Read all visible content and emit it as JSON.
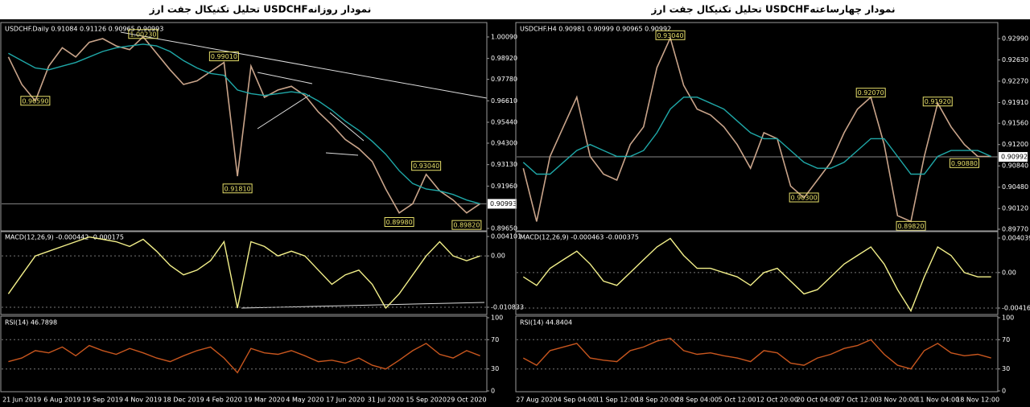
{
  "chart_data": [
    {
      "type": "line",
      "title": "تحلیل تکنیکال جفت ارز  USDCHFنمودار روزانه",
      "subtitle": "USDCHF.Daily  0.91084 0.91126 0.90965 0.90993",
      "series": [
        {
          "color": "#c9a48a",
          "values": [
            0.99,
            0.975,
            0.966,
            0.985,
            0.995,
            0.99,
            0.998,
            1.0,
            0.996,
            0.994,
            1.001,
            0.992,
            0.983,
            0.975,
            0.977,
            0.982,
            0.987,
            0.925,
            0.985,
            0.968,
            0.972,
            0.974,
            0.969,
            0.96,
            0.953,
            0.945,
            0.94,
            0.933,
            0.918,
            0.905,
            0.91,
            0.926,
            0.917,
            0.912,
            0.905,
            0.91
          ]
        },
        {
          "color": "#1fa8a8",
          "values": [
            0.992,
            0.988,
            0.984,
            0.983,
            0.985,
            0.987,
            0.99,
            0.993,
            0.995,
            0.996,
            0.997,
            0.996,
            0.993,
            0.988,
            0.984,
            0.981,
            0.98,
            0.972,
            0.97,
            0.969,
            0.97,
            0.971,
            0.97,
            0.966,
            0.961,
            0.955,
            0.95,
            0.944,
            0.937,
            0.928,
            0.921,
            0.918,
            0.917,
            0.915,
            0.912,
            0.91
          ]
        }
      ],
      "ylim": [
        0.8952,
        1.0079
      ],
      "yticks": [
        {
          "value": 1.0009,
          "label": "1.00090"
        },
        {
          "value": 0.9892,
          "label": "0.98920"
        },
        {
          "value": 0.9778,
          "label": "0.97780"
        },
        {
          "value": 0.9661,
          "label": "0.96610"
        },
        {
          "value": 0.9544,
          "label": "0.95440"
        },
        {
          "value": 0.943,
          "label": "0.94300"
        },
        {
          "value": 0.9313,
          "label": "0.93130"
        },
        {
          "value": 0.9196,
          "label": "0.91960"
        },
        {
          "value": 0.8965,
          "label": "0.89650"
        }
      ],
      "last": {
        "value": 0.90993,
        "label": "0.90993"
      },
      "annotations": [
        {
          "x": 10,
          "value": 1.0023,
          "label": "1.00230"
        },
        {
          "x": 16,
          "value": 0.9901,
          "label": "0.99010"
        },
        {
          "x": 2,
          "value": 0.9659,
          "label": "0.96590"
        },
        {
          "x": 17,
          "value": 0.9181,
          "label": "0.91810"
        },
        {
          "x": 31,
          "value": 0.9304,
          "label": "0.93040"
        },
        {
          "x": 29,
          "value": 0.8998,
          "label": "0.89980"
        },
        {
          "x": 34,
          "value": 0.8982,
          "label": "0.89820"
        }
      ],
      "grid": false
    },
    {
      "type": "line",
      "subtitle": "MACD(12,26,9) -0.000442 -0.000175",
      "series": [
        {
          "color": "#f3f08a",
          "values": [
            -0.008,
            -0.004,
            0.0,
            0.001,
            0.002,
            0.003,
            0.004,
            0.0035,
            0.003,
            0.002,
            0.0035,
            0.001,
            -0.002,
            -0.004,
            -0.003,
            -0.001,
            0.003,
            -0.011,
            0.003,
            0.002,
            0.0,
            0.001,
            0.0,
            -0.003,
            -0.006,
            -0.004,
            -0.003,
            -0.006,
            -0.011,
            -0.008,
            -0.004,
            0.0,
            0.003,
            0.0,
            -0.001,
            0.0
          ]
        }
      ],
      "ylim": [
        -0.01219,
        0.00495
      ],
      "yticks": [
        0.004101,
        {
          "value": 0,
          "label": "0.00"
        },
        -0.010833
      ],
      "grid": true
    },
    {
      "type": "line",
      "subtitle": "RSI(14) 46.7898",
      "series": [
        {
          "color": "#c8561e",
          "values": [
            40,
            45,
            55,
            52,
            60,
            48,
            62,
            55,
            50,
            58,
            52,
            45,
            40,
            48,
            55,
            60,
            45,
            25,
            58,
            52,
            50,
            55,
            48,
            40,
            42,
            38,
            45,
            35,
            30,
            42,
            55,
            65,
            50,
            45,
            55,
            48
          ]
        }
      ],
      "categories": [
        null,
        "21 Jun 2019",
        null,
        null,
        "6 Aug 2019",
        null,
        null,
        "19 Sep 2019",
        null,
        null,
        "4 Nov 2019",
        null,
        null,
        "18 Dec 2019",
        null,
        null,
        "4 Feb 2020",
        null,
        null,
        "19 Mar 2020",
        null,
        null,
        "4 May 2020",
        null,
        null,
        "17 Jun 2020",
        null,
        null,
        "31 Jul 2020",
        null,
        null,
        "15 Sep 2020",
        null,
        null,
        "29 Oct 2020",
        null
      ],
      "ylim": [
        0,
        100
      ],
      "yticks": [
        100,
        70,
        30,
        0
      ],
      "grid": true
    },
    {
      "type": "line",
      "title": "تحلیل تکنیکال جفت ارز  USDCHFنمودار چهارساعته",
      "subtitle": "USDCHF.H4  0.90981 0.90999 0.90965 0.90992",
      "series": [
        {
          "color": "#c9a48a",
          "values": [
            0.908,
            0.899,
            0.91,
            0.915,
            0.92,
            0.91,
            0.907,
            0.906,
            0.912,
            0.915,
            0.925,
            0.93,
            0.922,
            0.918,
            0.917,
            0.915,
            0.912,
            0.908,
            0.914,
            0.913,
            0.905,
            0.903,
            0.906,
            0.909,
            0.914,
            0.918,
            0.92,
            0.912,
            0.9,
            0.899,
            0.91,
            0.919,
            0.915,
            0.912,
            0.91,
            0.91
          ]
        },
        {
          "color": "#1fa8a8",
          "values": [
            0.909,
            0.907,
            0.907,
            0.909,
            0.911,
            0.912,
            0.911,
            0.91,
            0.91,
            0.911,
            0.914,
            0.918,
            0.92,
            0.92,
            0.919,
            0.918,
            0.916,
            0.914,
            0.913,
            0.913,
            0.911,
            0.909,
            0.908,
            0.908,
            0.909,
            0.911,
            0.913,
            0.913,
            0.91,
            0.907,
            0.907,
            0.91,
            0.911,
            0.911,
            0.911,
            0.91
          ]
        }
      ],
      "ylim": [
        0.89743,
        0.93234
      ],
      "yticks": [
        {
          "value": 0.9299,
          "label": "0.92990"
        },
        {
          "value": 0.9263,
          "label": "0.92630"
        },
        {
          "value": 0.9227,
          "label": "0.92270"
        },
        {
          "value": 0.9191,
          "label": "0.91910"
        },
        {
          "value": 0.9156,
          "label": "0.91560"
        },
        {
          "value": 0.912,
          "label": "0.91200"
        },
        {
          "value": 0.9084,
          "label": "0.90840"
        },
        {
          "value": 0.9048,
          "label": "0.90480"
        },
        {
          "value": 0.9012,
          "label": "0.90120"
        },
        {
          "value": 0.8977,
          "label": "0.89770"
        }
      ],
      "last": {
        "value": 0.90992,
        "label": "0.90992"
      },
      "annotations": [
        {
          "x": 11,
          "value": 0.9304,
          "label": "0.93040"
        },
        {
          "x": 26,
          "value": 0.9207,
          "label": "0.92070"
        },
        {
          "x": 31,
          "value": 0.9192,
          "label": "0.91920"
        },
        {
          "x": 33,
          "value": 0.9088,
          "label": "0.90880"
        },
        {
          "x": 21,
          "value": 0.903,
          "label": "0.90300"
        },
        {
          "x": 29,
          "value": 0.8982,
          "label": "0.89820"
        }
      ],
      "grid": false
    },
    {
      "type": "line",
      "subtitle": "MACD(12,26,9) -0.000463 -0.000375",
      "series": [
        {
          "color": "#f3f08a",
          "values": [
            -0.0005,
            -0.0015,
            0.0005,
            0.0015,
            0.0025,
            0.001,
            -0.001,
            -0.0015,
            0.0,
            0.0015,
            0.003,
            0.004,
            0.002,
            0.0005,
            0.0005,
            0.0,
            -0.0005,
            -0.0015,
            0.0,
            0.0005,
            -0.001,
            -0.0025,
            -0.002,
            -0.0005,
            0.001,
            0.002,
            0.003,
            0.001,
            -0.002,
            -0.0045,
            -0.0005,
            0.003,
            0.002,
            0.0,
            -0.0005,
            -0.0005
          ]
        }
      ],
      "ylim": [
        -0.00482,
        0.0047
      ],
      "yticks": [
        0.004039,
        {
          "value": 0,
          "label": "0.00"
        },
        -0.00416
      ],
      "grid": true
    },
    {
      "type": "line",
      "subtitle": "RSI(14) 44.8404",
      "series": [
        {
          "color": "#c8561e",
          "values": [
            45,
            35,
            55,
            60,
            65,
            45,
            42,
            40,
            55,
            60,
            68,
            72,
            55,
            50,
            52,
            48,
            45,
            40,
            55,
            52,
            38,
            35,
            45,
            50,
            58,
            62,
            70,
            50,
            35,
            30,
            55,
            65,
            52,
            48,
            50,
            45
          ]
        }
      ],
      "categories": [
        null,
        "27 Aug 2020",
        null,
        null,
        "4 Sep 04:00",
        null,
        null,
        "11 Sep 12:00",
        null,
        null,
        "18 Sep 20:00",
        null,
        null,
        "28 Sep 04:00",
        null,
        null,
        "5 Oct 12:00",
        null,
        null,
        "12 Oct 20:00",
        null,
        null,
        "20 Oct 04:00",
        null,
        null,
        "27 Oct 12:00",
        null,
        null,
        "3 Nov 20:00",
        null,
        null,
        "11 Nov 04:00",
        null,
        null,
        "18 Nov 12:00",
        null
      ],
      "ylim": [
        0,
        100
      ],
      "yticks": [
        100,
        70,
        30,
        0
      ],
      "grid": true
    }
  ]
}
